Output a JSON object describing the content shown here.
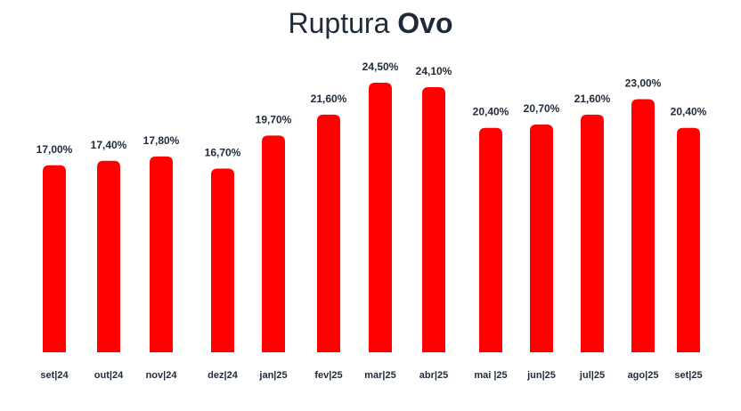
{
  "title": {
    "prefix": "Ruptura",
    "emphasis": "Ovo"
  },
  "chart_data": {
    "type": "bar",
    "title": "Ruptura Ovo",
    "categories": [
      "set|24",
      "out|24",
      "nov|24",
      "dez|24",
      "jan|25",
      "fev|25",
      "mar|25",
      "abr|25",
      "mai |25",
      "jun|25",
      "jul|25",
      "ago|25",
      "set|25"
    ],
    "values": [
      17.0,
      17.4,
      17.8,
      16.7,
      19.7,
      21.6,
      24.5,
      24.1,
      20.4,
      20.7,
      21.6,
      23.0,
      20.4
    ],
    "value_labels": [
      "17,00%",
      "17,40%",
      "17,80%",
      "16,70%",
      "19,70%",
      "21,60%",
      "24,50%",
      "24,10%",
      "20,40%",
      "20,70%",
      "21,60%",
      "23,00%",
      "20,40%"
    ],
    "unit": "%",
    "bar_color": "#ff0000",
    "text_color": "#1f2a3a",
    "ylim": [
      0,
      24.5
    ],
    "grid": false,
    "xlabel": "",
    "ylabel": ""
  }
}
